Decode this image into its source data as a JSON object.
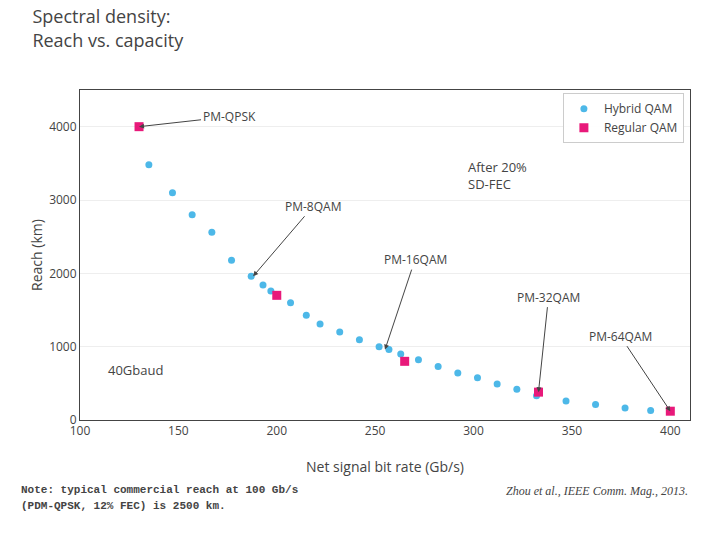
{
  "chart_data": {
    "type": "scatter",
    "title": "Spectral density:",
    "subtitle": "Reach vs. capacity",
    "x_label": "Net signal bit rate (Gb/s)",
    "y_label": "Reach (km)",
    "xlim": [
      100,
      410
    ],
    "ylim": [
      0,
      4500
    ],
    "xticks": [
      100,
      150,
      200,
      250,
      300,
      350,
      400
    ],
    "yticks": [
      0,
      1000,
      2000,
      3000,
      4000
    ],
    "grid": "y",
    "legend": "upper right",
    "series": [
      {
        "name": "Hybrid QAM",
        "color": "#4db8e8",
        "marker": "circle",
        "x": [
          135,
          147,
          157,
          167,
          177,
          187,
          193,
          197,
          207,
          215,
          222,
          232,
          242,
          252,
          257,
          263,
          272,
          282,
          292,
          302,
          312,
          322,
          332,
          347,
          362,
          377,
          390
        ],
        "values": [
          3480,
          3100,
          2800,
          2560,
          2180,
          1960,
          1840,
          1760,
          1600,
          1430,
          1310,
          1200,
          1095,
          1000,
          960,
          900,
          820,
          730,
          640,
          575,
          490,
          420,
          330,
          260,
          210,
          165,
          130
        ]
      },
      {
        "name": "Regular QAM",
        "color": "#e8197a",
        "marker": "square",
        "x": [
          130,
          200,
          265,
          333,
          400
        ],
        "values": [
          4000,
          1700,
          800,
          380,
          120
        ]
      }
    ],
    "annotations": [
      {
        "text": "PM-QPSK",
        "x": 130,
        "y": 4000
      },
      {
        "text": "PM-8QAM",
        "x": 188,
        "y": 1960
      },
      {
        "text": "PM-16QAM",
        "x": 255,
        "y": 960
      },
      {
        "text": "PM-32QAM",
        "x": 333,
        "y": 380
      },
      {
        "text": "PM-64QAM",
        "x": 400,
        "y": 120
      },
      {
        "text": "40Gbaud"
      },
      {
        "text": "After 20%\nSD-FEC"
      }
    ],
    "notes": [
      "Note: typical commercial reach at 100 Gb/s",
      "(PDM-QPSK, 12% FEC) is 2500 km.",
      "Zhou et al., IEEE Comm. Mag., 2013."
    ]
  }
}
